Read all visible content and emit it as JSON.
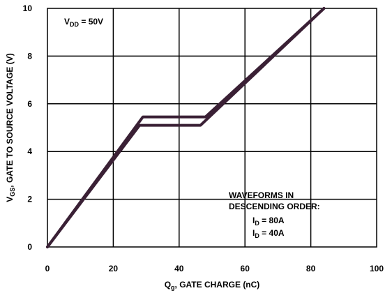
{
  "chart_data": {
    "type": "line",
    "title": "",
    "xlabel": {
      "main": "Q",
      "sub": "g",
      "rest": ", GATE CHARGE (nC)"
    },
    "ylabel": {
      "main": "V",
      "sub": "GS",
      "rest": ", GATE TO SOURCE VOLTAGE (V)"
    },
    "xlim": [
      0,
      100
    ],
    "ylim": [
      0,
      10
    ],
    "x_ticks": [
      0,
      20,
      40,
      60,
      80,
      100
    ],
    "y_ticks": [
      0,
      2,
      4,
      6,
      8,
      10
    ],
    "grid": true,
    "colors": {
      "line": "#3a2035",
      "grid": "#000000"
    },
    "series": [
      {
        "x": [
          0,
          29,
          48,
          84
        ],
        "y": [
          0,
          5.45,
          5.45,
          10
        ]
      },
      {
        "x": [
          0,
          28,
          46.5,
          84
        ],
        "y": [
          0,
          5.1,
          5.1,
          10
        ]
      }
    ],
    "annotations": {
      "vdd": {
        "main": "V",
        "sub": "DD",
        "rest": " = 50V"
      },
      "waveforms_line1": "WAVEFORMS IN",
      "waveforms_line2": "DESCENDING ORDER:",
      "id1": {
        "main": "I",
        "sub": "D",
        "rest": " = 80A"
      },
      "id2": {
        "main": "I",
        "sub": "D",
        "rest": " = 40A"
      }
    }
  }
}
